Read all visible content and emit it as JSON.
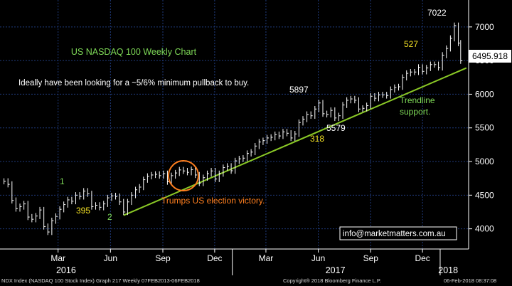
{
  "chart_data": {
    "type": "candlestick",
    "title": "US NASDAQ 100 Weekly Chart",
    "subtitle": "Ideally have been looking for a ~5/6% minimum pullback to buy.",
    "xlabel": "",
    "ylabel": "",
    "ylim": [
      3700,
      7400
    ],
    "y_ticks": [
      4000,
      4500,
      5000,
      5500,
      6000,
      6500,
      7000
    ],
    "x_ticks": [
      {
        "label": "Mar",
        "date": "2016-03-01"
      },
      {
        "label": "Jun",
        "date": "2016-06-01"
      },
      {
        "label": "Sep",
        "date": "2016-09-01"
      },
      {
        "label": "Dec",
        "date": "2016-12-01"
      },
      {
        "label": "Mar",
        "date": "2017-03-01"
      },
      {
        "label": "Jun",
        "date": "2017-06-01"
      },
      {
        "label": "Sep",
        "date": "2017-09-01"
      },
      {
        "label": "Dec",
        "date": "2017-12-01"
      }
    ],
    "year_labels": [
      {
        "label": "2016",
        "date": "2016-03-15"
      },
      {
        "label": "2017",
        "date": "2017-07-01"
      },
      {
        "label": "2018",
        "date": "2018-01-15"
      }
    ],
    "x_range": [
      "2015-11-20",
      "2018-02-20"
    ],
    "grid": true,
    "colors": {
      "background": "#000000",
      "grid": "#1f3a7a",
      "price": "#ffffff",
      "trendline": "#8ac926",
      "title": "#7ed957",
      "circle": "#ff7f1f",
      "label_yellow": "#f2e024",
      "label_green": "#7ed957",
      "price_box": "#ffffff"
    },
    "series": [
      {
        "marks": [
          [
            "2015-11-27",
            4706
          ],
          [
            "2015-12-04",
            4661
          ],
          [
            "2015-12-11",
            4421
          ],
          [
            "2015-12-18",
            4300
          ],
          [
            "2015-12-25",
            4330
          ],
          [
            "2016-01-01",
            4370
          ],
          [
            "2016-01-08",
            4175
          ],
          [
            "2016-01-15",
            4142
          ],
          [
            "2016-01-22",
            4190
          ],
          [
            "2016-01-29",
            4280
          ],
          [
            "2016-02-05",
            4034
          ],
          [
            "2016-02-12",
            3953
          ],
          [
            "2016-02-19",
            4120
          ],
          [
            "2016-02-26",
            4185
          ],
          [
            "2016-03-04",
            4290
          ],
          [
            "2016-03-11",
            4360
          ],
          [
            "2016-03-18",
            4430
          ],
          [
            "2016-03-25",
            4410
          ],
          [
            "2016-04-01",
            4500
          ],
          [
            "2016-04-08",
            4480
          ],
          [
            "2016-04-15",
            4560
          ],
          [
            "2016-04-22",
            4520
          ],
          [
            "2016-04-29",
            4330
          ],
          [
            "2016-05-06",
            4350
          ],
          [
            "2016-05-13",
            4320
          ],
          [
            "2016-05-20",
            4370
          ],
          [
            "2016-05-27",
            4460
          ],
          [
            "2016-06-03",
            4490
          ],
          [
            "2016-06-10",
            4480
          ],
          [
            "2016-06-17",
            4400
          ],
          [
            "2016-06-24",
            4250
          ],
          [
            "2016-07-01",
            4400
          ],
          [
            "2016-07-08",
            4500
          ],
          [
            "2016-07-15",
            4580
          ],
          [
            "2016-07-22",
            4620
          ],
          [
            "2016-07-29",
            4730
          ],
          [
            "2016-08-05",
            4780
          ],
          [
            "2016-08-12",
            4800
          ],
          [
            "2016-08-19",
            4810
          ],
          [
            "2016-08-26",
            4790
          ],
          [
            "2016-09-02",
            4820
          ],
          [
            "2016-09-09",
            4700
          ],
          [
            "2016-09-16",
            4790
          ],
          [
            "2016-09-23",
            4830
          ],
          [
            "2016-09-30",
            4875
          ],
          [
            "2016-10-07",
            4860
          ],
          [
            "2016-10-14",
            4840
          ],
          [
            "2016-10-21",
            4880
          ],
          [
            "2016-10-28",
            4800
          ],
          [
            "2016-11-04",
            4680
          ],
          [
            "2016-11-11",
            4760
          ],
          [
            "2016-11-18",
            4820
          ],
          [
            "2016-11-25",
            4860
          ],
          [
            "2016-12-02",
            4740
          ],
          [
            "2016-12-09",
            4820
          ],
          [
            "2016-12-16",
            4910
          ],
          [
            "2016-12-23",
            4930
          ],
          [
            "2016-12-30",
            4863
          ],
          [
            "2017-01-06",
            5010
          ],
          [
            "2017-01-13",
            5040
          ],
          [
            "2017-01-20",
            5050
          ],
          [
            "2017-01-27",
            5120
          ],
          [
            "2017-02-03",
            5140
          ],
          [
            "2017-02-10",
            5230
          ],
          [
            "2017-02-17",
            5290
          ],
          [
            "2017-02-24",
            5310
          ],
          [
            "2017-03-03",
            5350
          ],
          [
            "2017-03-10",
            5360
          ],
          [
            "2017-03-17",
            5400
          ],
          [
            "2017-03-24",
            5380
          ],
          [
            "2017-03-31",
            5440
          ],
          [
            "2017-04-07",
            5420
          ],
          [
            "2017-04-14",
            5350
          ],
          [
            "2017-04-21",
            5410
          ],
          [
            "2017-04-28",
            5580
          ],
          [
            "2017-05-05",
            5630
          ],
          [
            "2017-05-12",
            5700
          ],
          [
            "2017-05-19",
            5680
          ],
          [
            "2017-05-26",
            5780
          ],
          [
            "2017-06-02",
            5870
          ],
          [
            "2017-06-09",
            5710
          ],
          [
            "2017-06-16",
            5700
          ],
          [
            "2017-06-23",
            5760
          ],
          [
            "2017-06-30",
            5647
          ],
          [
            "2017-07-07",
            5680
          ],
          [
            "2017-07-14",
            5840
          ],
          [
            "2017-07-21",
            5910
          ],
          [
            "2017-07-28",
            5930
          ],
          [
            "2017-08-04",
            5910
          ],
          [
            "2017-08-11",
            5780
          ],
          [
            "2017-08-18",
            5790
          ],
          [
            "2017-08-25",
            5830
          ],
          [
            "2017-09-01",
            5970
          ],
          [
            "2017-09-08",
            5940
          ],
          [
            "2017-09-15",
            5990
          ],
          [
            "2017-09-22",
            5990
          ],
          [
            "2017-09-29",
            5980
          ],
          [
            "2017-10-06",
            6070
          ],
          [
            "2017-10-13",
            6100
          ],
          [
            "2017-10-20",
            6110
          ],
          [
            "2017-10-27",
            6250
          ],
          [
            "2017-11-03",
            6310
          ],
          [
            "2017-11-10",
            6330
          ],
          [
            "2017-11-17",
            6330
          ],
          [
            "2017-11-24",
            6400
          ],
          [
            "2017-12-01",
            6340
          ],
          [
            "2017-12-08",
            6390
          ],
          [
            "2017-12-15",
            6440
          ],
          [
            "2017-12-22",
            6440
          ],
          [
            "2017-12-29",
            6397
          ],
          [
            "2018-01-05",
            6580
          ],
          [
            "2018-01-12",
            6680
          ],
          [
            "2018-01-19",
            6830
          ],
          [
            "2018-01-26",
            7020
          ],
          [
            "2018-02-02",
            6760
          ],
          [
            "2018-02-06",
            6496
          ]
        ]
      }
    ],
    "trendline": {
      "from": [
        "2016-06-24",
        4200
      ],
      "to": [
        "2018-02-16",
        6390
      ]
    },
    "last_price": 6495.918,
    "annotations": {
      "label_1": "1",
      "label_2": "2",
      "label_395": "395",
      "label_5897": "5897",
      "label_5579": "5579",
      "label_318": "318",
      "label_527": "527",
      "label_7022": "7022",
      "trendline_support": "Trendline support.",
      "trump_note": "Trumps US election victory.",
      "email": "info@marketmatters.com.au",
      "last_price_label": "6495.918"
    }
  },
  "footer": {
    "left": "NDX Index (NASDAQ 100 Stock Index) Graph 217  Weekly 07FEB2013-06FEB2018",
    "center": "Copyright® 2018 Bloomberg Finance L.P.",
    "right": "06-Feb-2018 08:37:08"
  }
}
